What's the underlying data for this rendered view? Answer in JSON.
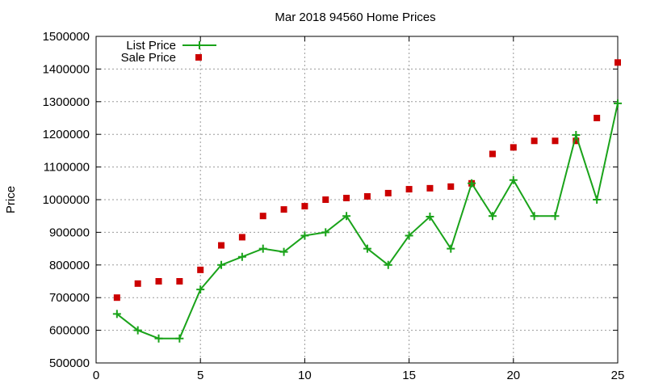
{
  "chart_data": {
    "type": "line",
    "title": "Mar 2018 94560 Home Prices",
    "xlabel": "",
    "ylabel": "Price",
    "xlim": [
      0,
      25
    ],
    "ylim": [
      500000,
      1500000
    ],
    "xticks": [
      0,
      5,
      10,
      15,
      20,
      25
    ],
    "yticks": [
      500000,
      600000,
      700000,
      800000,
      900000,
      1000000,
      1100000,
      1200000,
      1300000,
      1400000,
      1500000
    ],
    "grid": true,
    "legend_position": "top-left",
    "series": [
      {
        "name": "List Price",
        "style": "line-with-plus-markers",
        "color": "#1aa31a",
        "x": [
          1,
          2,
          3,
          4,
          5,
          6,
          7,
          8,
          9,
          10,
          11,
          12,
          13,
          14,
          15,
          16,
          17,
          18,
          19,
          20,
          21,
          22,
          23,
          24,
          25
        ],
        "y": [
          650000,
          600000,
          575000,
          575000,
          725000,
          800000,
          825000,
          850000,
          840000,
          890000,
          900000,
          950000,
          850000,
          800000,
          890000,
          948000,
          850000,
          1050000,
          950000,
          1060000,
          950000,
          950000,
          1198000,
          1000000,
          1295000
        ]
      },
      {
        "name": "Sale Price",
        "style": "square-markers",
        "color": "#cc0000",
        "x": [
          1,
          2,
          3,
          4,
          5,
          6,
          7,
          8,
          9,
          10,
          11,
          12,
          13,
          14,
          15,
          16,
          17,
          18,
          19,
          20,
          21,
          22,
          23,
          24,
          25
        ],
        "y": [
          700000,
          743000,
          750000,
          750000,
          785000,
          860000,
          885000,
          950000,
          970000,
          980000,
          1000000,
          1005000,
          1010000,
          1020000,
          1032000,
          1035000,
          1040000,
          1050000,
          1140000,
          1160000,
          1180000,
          1180000,
          1180000,
          1250000,
          1420000
        ]
      }
    ]
  }
}
